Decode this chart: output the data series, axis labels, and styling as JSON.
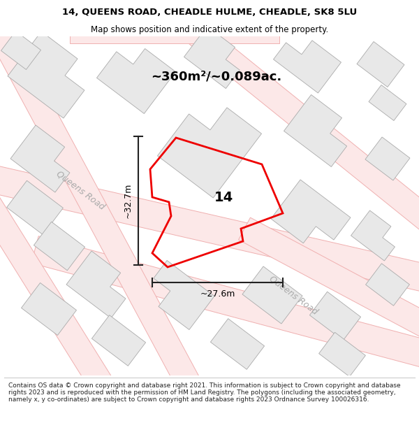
{
  "title_line1": "14, QUEENS ROAD, CHEADLE HULME, CHEADLE, SK8 5LU",
  "title_line2": "Map shows position and indicative extent of the property.",
  "footer_text": "Contains OS data © Crown copyright and database right 2021. This information is subject to Crown copyright and database rights 2023 and is reproduced with the permission of HM Land Registry. The polygons (including the associated geometry, namely x, y co-ordinates) are subject to Crown copyright and database rights 2023 Ordnance Survey 100026316.",
  "area_text": "~360m²/~0.089ac.",
  "dim_vertical": "~32.7m",
  "dim_horizontal": "~27.6m",
  "property_number": "14",
  "map_bg": "#f8f8f8",
  "road_fill_color": "#fce8e8",
  "road_line_color": "#f0b0b0",
  "building_fill": "#e8e8e8",
  "building_stroke": "#aaaaaa",
  "red_polygon_color": "#ee0000",
  "dim_line_color": "#222222",
  "text_color": "#000000",
  "road_label_color": "#aaaaaa"
}
